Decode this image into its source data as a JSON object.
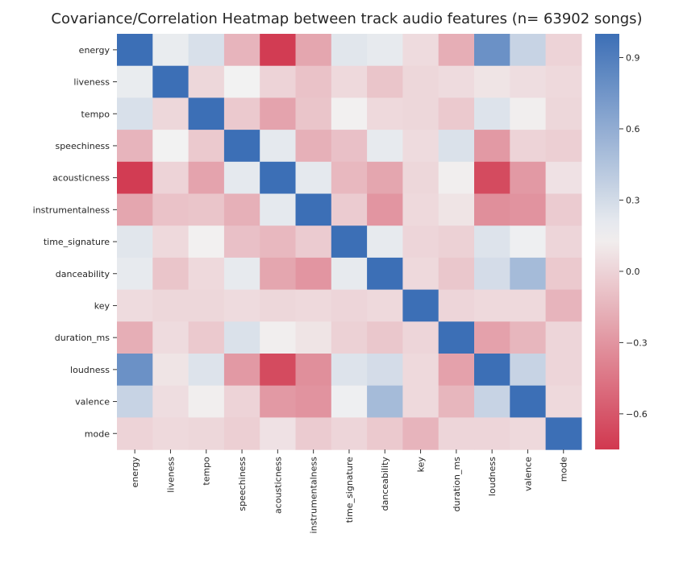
{
  "chart_data": {
    "type": "heatmap",
    "title": "Covariance/Correlation Heatmap between track audio features (n= 63902 songs)",
    "xlabel": "",
    "ylabel": "",
    "labels": [
      "energy",
      "liveness",
      "tempo",
      "speechiness",
      "acousticness",
      "instrumentalness",
      "time_signature",
      "danceability",
      "key",
      "duration_ms",
      "loudness",
      "valence",
      "mode"
    ],
    "values": [
      [
        1.0,
        0.19,
        0.27,
        -0.15,
        -0.73,
        -0.22,
        0.23,
        0.2,
        0.04,
        -0.18,
        0.78,
        0.35,
        0.0
      ],
      [
        0.19,
        1.0,
        0.02,
        0.15,
        0.0,
        -0.08,
        0.03,
        -0.07,
        0.02,
        0.04,
        0.08,
        0.05,
        0.03
      ],
      [
        0.27,
        0.02,
        1.0,
        -0.05,
        -0.23,
        -0.07,
        0.14,
        0.03,
        0.02,
        -0.05,
        0.25,
        0.13,
        0.02
      ],
      [
        -0.15,
        0.15,
        -0.05,
        1.0,
        0.21,
        -0.17,
        -0.09,
        0.2,
        0.04,
        0.26,
        -0.28,
        0.0,
        -0.02
      ],
      [
        -0.73,
        0.0,
        -0.23,
        0.21,
        1.0,
        0.21,
        -0.13,
        -0.22,
        0.02,
        0.13,
        -0.66,
        -0.28,
        0.07
      ],
      [
        -0.22,
        -0.08,
        -0.07,
        -0.17,
        0.21,
        1.0,
        -0.04,
        -0.3,
        0.03,
        0.08,
        -0.33,
        -0.31,
        -0.04
      ],
      [
        0.23,
        0.03,
        0.14,
        -0.09,
        -0.13,
        -0.04,
        1.0,
        0.2,
        0.01,
        -0.01,
        0.25,
        0.17,
        0.01
      ],
      [
        0.2,
        -0.07,
        0.03,
        0.2,
        -0.22,
        -0.3,
        0.2,
        1.0,
        0.03,
        -0.06,
        0.29,
        0.51,
        -0.05
      ],
      [
        0.04,
        0.02,
        0.02,
        0.04,
        0.02,
        0.03,
        0.01,
        0.03,
        1.0,
        0.01,
        0.03,
        0.03,
        -0.15
      ],
      [
        -0.18,
        0.04,
        -0.05,
        0.26,
        0.13,
        0.08,
        -0.01,
        -0.06,
        0.01,
        1.0,
        -0.24,
        -0.14,
        0.01
      ],
      [
        0.78,
        0.08,
        0.25,
        -0.28,
        -0.66,
        -0.33,
        0.25,
        0.29,
        0.03,
        -0.24,
        1.0,
        0.35,
        0.01
      ],
      [
        0.35,
        0.05,
        0.13,
        0.0,
        -0.28,
        -0.31,
        0.17,
        0.51,
        0.03,
        -0.14,
        0.35,
        1.0,
        0.03
      ],
      [
        0.0,
        0.03,
        0.02,
        -0.02,
        0.07,
        -0.04,
        0.01,
        -0.05,
        -0.15,
        0.01,
        0.01,
        0.03,
        1.0
      ]
    ],
    "colorbar": {
      "range": [
        -0.75,
        1.0
      ],
      "ticks": [
        "0.9",
        "0.6",
        "0.3",
        "0.0",
        "−0.3",
        "−0.6"
      ],
      "tick_values": [
        0.9,
        0.6,
        0.3,
        0.0,
        -0.3,
        -0.6
      ]
    },
    "colors": {
      "negative": "#d1384f",
      "neutral": "#f2f2f2",
      "positive": "#3c6fb6"
    },
    "grid": false
  }
}
